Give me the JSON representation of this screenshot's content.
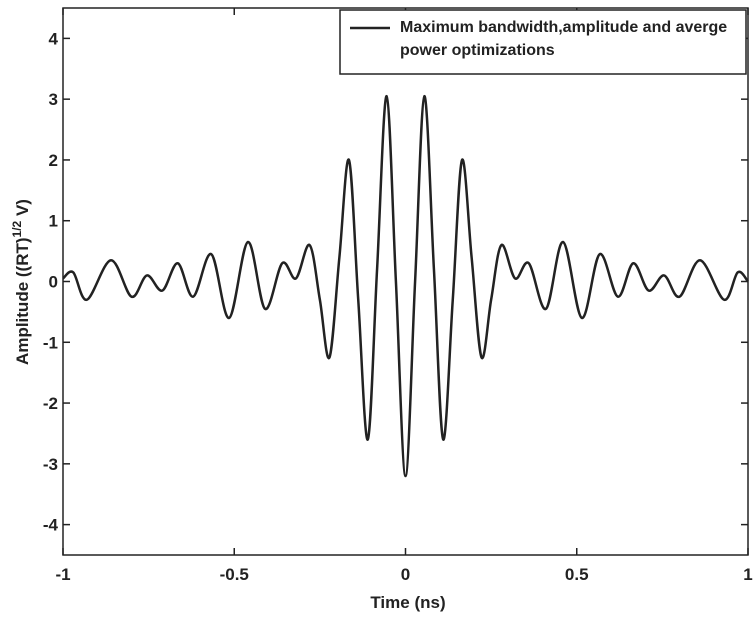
{
  "chart_data": {
    "type": "line",
    "xlabel": "Time (ns)",
    "ylabel": "Amplitude ((RT)",
    "ylabel_sup": "1/2",
    "ylabel_end": " V)",
    "xlim": [
      -1,
      1
    ],
    "ylim": [
      -4.5,
      4.5
    ],
    "xticks": [
      -1,
      -0.5,
      0,
      0.5,
      1
    ],
    "yticks": [
      -4,
      -3,
      -2,
      -1,
      0,
      1,
      2,
      3,
      4
    ],
    "legend": "top-right",
    "x": [
      -1.0,
      -0.97,
      -0.93,
      -0.86,
      -0.8,
      -0.755,
      -0.71,
      -0.665,
      -0.62,
      -0.567,
      -0.515,
      -0.46,
      -0.41,
      -0.36,
      -0.32,
      -0.28,
      -0.25,
      -0.222,
      -0.193,
      -0.165,
      -0.138,
      -0.11,
      -0.083,
      -0.055,
      -0.028,
      0,
      0.028,
      0.055,
      0.083,
      0.11,
      0.138,
      0.165,
      0.193,
      0.222,
      0.25,
      0.28,
      0.32,
      0.36,
      0.41,
      0.46,
      0.515,
      0.567,
      0.62,
      0.665,
      0.71,
      0.755,
      0.8,
      0.86,
      0.93,
      0.97,
      1.0
    ],
    "series": [
      {
        "name": "Maximum bandwidth,amplitude and averge power optimizations",
        "color": "#222222",
        "values": [
          0.05,
          0.15,
          -0.3,
          0.35,
          -0.25,
          0.1,
          -0.15,
          0.3,
          -0.25,
          0.45,
          -0.6,
          0.65,
          -0.45,
          0.3,
          0.05,
          0.6,
          -0.3,
          -1.25,
          0.4,
          2.0,
          -0.3,
          -2.6,
          0.2,
          3.05,
          0,
          -3.2,
          0,
          3.05,
          0.2,
          -2.6,
          -0.3,
          2.0,
          0.4,
          -1.25,
          -0.3,
          0.6,
          0.05,
          0.3,
          -0.45,
          0.65,
          -0.6,
          0.45,
          -0.25,
          0.3,
          -0.15,
          0.1,
          -0.25,
          0.35,
          -0.3,
          0.15,
          0.0
        ]
      }
    ]
  }
}
